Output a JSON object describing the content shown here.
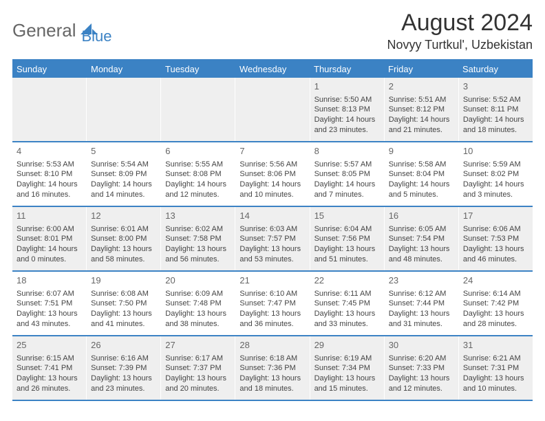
{
  "brand": {
    "part1": "General",
    "part2": "Blue"
  },
  "title": {
    "month": "August 2024",
    "location": "Novyy Turtkul', Uzbekistan"
  },
  "colors": {
    "accent": "#3b82c4",
    "shade": "#efefef",
    "text": "#333333"
  },
  "layout": {
    "weeks": 5,
    "first_day_column_index": 4
  },
  "dow": [
    "Sunday",
    "Monday",
    "Tuesday",
    "Wednesday",
    "Thursday",
    "Friday",
    "Saturday"
  ],
  "days": [
    {
      "n": "1",
      "sr": "5:50 AM",
      "ss": "8:13 PM",
      "dh": "14",
      "dm": "23"
    },
    {
      "n": "2",
      "sr": "5:51 AM",
      "ss": "8:12 PM",
      "dh": "14",
      "dm": "21"
    },
    {
      "n": "3",
      "sr": "5:52 AM",
      "ss": "8:11 PM",
      "dh": "14",
      "dm": "18"
    },
    {
      "n": "4",
      "sr": "5:53 AM",
      "ss": "8:10 PM",
      "dh": "14",
      "dm": "16"
    },
    {
      "n": "5",
      "sr": "5:54 AM",
      "ss": "8:09 PM",
      "dh": "14",
      "dm": "14"
    },
    {
      "n": "6",
      "sr": "5:55 AM",
      "ss": "8:08 PM",
      "dh": "14",
      "dm": "12"
    },
    {
      "n": "7",
      "sr": "5:56 AM",
      "ss": "8:06 PM",
      "dh": "14",
      "dm": "10"
    },
    {
      "n": "8",
      "sr": "5:57 AM",
      "ss": "8:05 PM",
      "dh": "14",
      "dm": "7"
    },
    {
      "n": "9",
      "sr": "5:58 AM",
      "ss": "8:04 PM",
      "dh": "14",
      "dm": "5"
    },
    {
      "n": "10",
      "sr": "5:59 AM",
      "ss": "8:02 PM",
      "dh": "14",
      "dm": "3"
    },
    {
      "n": "11",
      "sr": "6:00 AM",
      "ss": "8:01 PM",
      "dh": "14",
      "dm": "0"
    },
    {
      "n": "12",
      "sr": "6:01 AM",
      "ss": "8:00 PM",
      "dh": "13",
      "dm": "58"
    },
    {
      "n": "13",
      "sr": "6:02 AM",
      "ss": "7:58 PM",
      "dh": "13",
      "dm": "56"
    },
    {
      "n": "14",
      "sr": "6:03 AM",
      "ss": "7:57 PM",
      "dh": "13",
      "dm": "53"
    },
    {
      "n": "15",
      "sr": "6:04 AM",
      "ss": "7:56 PM",
      "dh": "13",
      "dm": "51"
    },
    {
      "n": "16",
      "sr": "6:05 AM",
      "ss": "7:54 PM",
      "dh": "13",
      "dm": "48"
    },
    {
      "n": "17",
      "sr": "6:06 AM",
      "ss": "7:53 PM",
      "dh": "13",
      "dm": "46"
    },
    {
      "n": "18",
      "sr": "6:07 AM",
      "ss": "7:51 PM",
      "dh": "13",
      "dm": "43"
    },
    {
      "n": "19",
      "sr": "6:08 AM",
      "ss": "7:50 PM",
      "dh": "13",
      "dm": "41"
    },
    {
      "n": "20",
      "sr": "6:09 AM",
      "ss": "7:48 PM",
      "dh": "13",
      "dm": "38"
    },
    {
      "n": "21",
      "sr": "6:10 AM",
      "ss": "7:47 PM",
      "dh": "13",
      "dm": "36"
    },
    {
      "n": "22",
      "sr": "6:11 AM",
      "ss": "7:45 PM",
      "dh": "13",
      "dm": "33"
    },
    {
      "n": "23",
      "sr": "6:12 AM",
      "ss": "7:44 PM",
      "dh": "13",
      "dm": "31"
    },
    {
      "n": "24",
      "sr": "6:14 AM",
      "ss": "7:42 PM",
      "dh": "13",
      "dm": "28"
    },
    {
      "n": "25",
      "sr": "6:15 AM",
      "ss": "7:41 PM",
      "dh": "13",
      "dm": "26"
    },
    {
      "n": "26",
      "sr": "6:16 AM",
      "ss": "7:39 PM",
      "dh": "13",
      "dm": "23"
    },
    {
      "n": "27",
      "sr": "6:17 AM",
      "ss": "7:37 PM",
      "dh": "13",
      "dm": "20"
    },
    {
      "n": "28",
      "sr": "6:18 AM",
      "ss": "7:36 PM",
      "dh": "13",
      "dm": "18"
    },
    {
      "n": "29",
      "sr": "6:19 AM",
      "ss": "7:34 PM",
      "dh": "13",
      "dm": "15"
    },
    {
      "n": "30",
      "sr": "6:20 AM",
      "ss": "7:33 PM",
      "dh": "13",
      "dm": "12"
    },
    {
      "n": "31",
      "sr": "6:21 AM",
      "ss": "7:31 PM",
      "dh": "13",
      "dm": "10"
    }
  ]
}
